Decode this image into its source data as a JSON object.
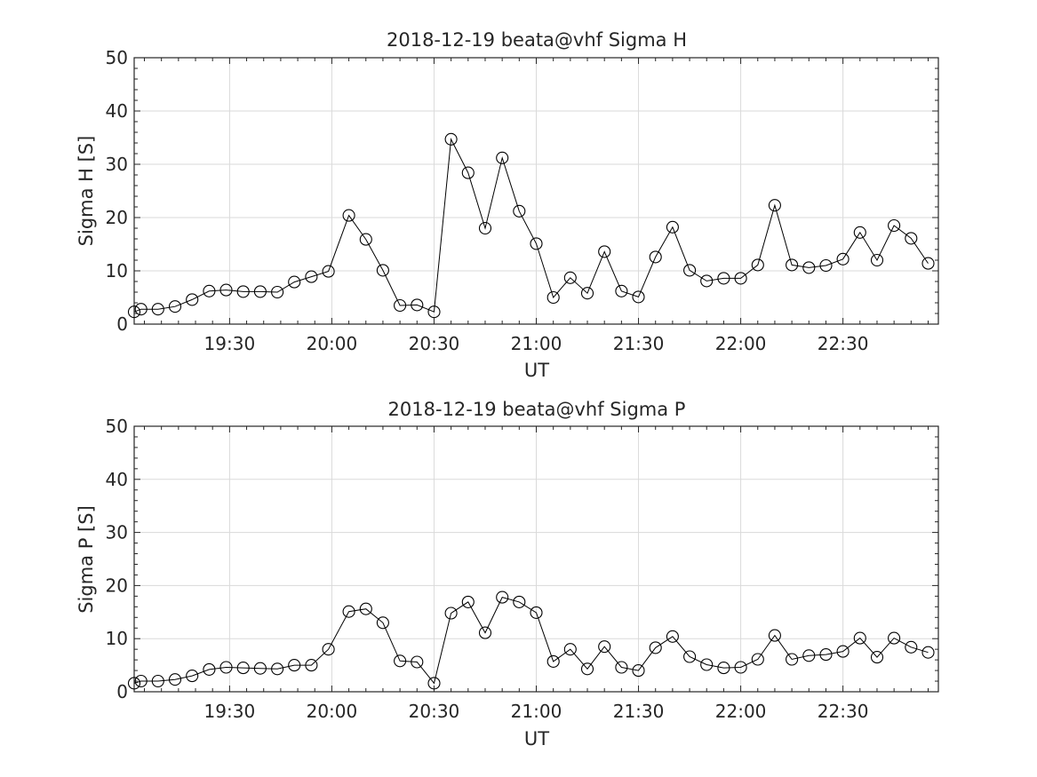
{
  "chart_data": [
    {
      "type": "line",
      "title": "2018-12-19  beata@vhf Sigma H",
      "xlabel": "UT",
      "ylabel": "Sigma H [S]",
      "xlim": [
        "19:02",
        "22:58"
      ],
      "ylim": [
        0,
        50
      ],
      "yticks": [
        0,
        10,
        20,
        30,
        40,
        50
      ],
      "xticks": [
        "19:30",
        "20:00",
        "20:30",
        "21:00",
        "21:30",
        "22:00",
        "22:30"
      ],
      "grid": true,
      "marker": "circle",
      "color": "#000000",
      "x": [
        "19:02",
        "19:04",
        "19:09",
        "19:14",
        "19:19",
        "19:24",
        "19:29",
        "19:34",
        "19:39",
        "19:44",
        "19:49",
        "19:54",
        "19:59",
        "20:05",
        "20:10",
        "20:15",
        "20:20",
        "20:25",
        "20:30",
        "20:35",
        "20:40",
        "20:45",
        "20:50",
        "20:55",
        "21:00",
        "21:05",
        "21:10",
        "21:15",
        "21:20",
        "21:25",
        "21:30",
        "21:35",
        "21:40",
        "21:45",
        "21:50",
        "21:55",
        "22:00",
        "22:05",
        "22:10",
        "22:15",
        "22:20",
        "22:25",
        "22:30",
        "22:35",
        "22:40",
        "22:45",
        "22:50",
        "22:55"
      ],
      "y": [
        2.3,
        2.8,
        2.8,
        3.3,
        4.6,
        6.2,
        6.4,
        6.1,
        6.1,
        6.0,
        7.9,
        8.9,
        9.9,
        20.4,
        15.9,
        10.1,
        3.5,
        3.6,
        2.3,
        34.7,
        28.4,
        18.0,
        31.2,
        21.2,
        15.1,
        5.0,
        8.7,
        5.8,
        13.6,
        6.2,
        5.1,
        12.6,
        18.2,
        10.1,
        8.1,
        8.6,
        8.6,
        11.1,
        22.3,
        11.1,
        10.6,
        11.0,
        12.2,
        17.2,
        12.0,
        18.5,
        16.1,
        11.4
      ]
    },
    {
      "type": "line",
      "title": "2018-12-19  beata@vhf Sigma P",
      "xlabel": "UT",
      "ylabel": "Sigma P [S]",
      "xlim": [
        "19:02",
        "22:58"
      ],
      "ylim": [
        0,
        50
      ],
      "yticks": [
        0,
        10,
        20,
        30,
        40,
        50
      ],
      "xticks": [
        "19:30",
        "20:00",
        "20:30",
        "21:00",
        "21:30",
        "22:00",
        "22:30"
      ],
      "grid": true,
      "marker": "circle",
      "color": "#000000",
      "x": [
        "19:02",
        "19:04",
        "19:09",
        "19:14",
        "19:19",
        "19:24",
        "19:29",
        "19:34",
        "19:39",
        "19:44",
        "19:49",
        "19:54",
        "19:59",
        "20:05",
        "20:10",
        "20:15",
        "20:20",
        "20:25",
        "20:30",
        "20:35",
        "20:40",
        "20:45",
        "20:50",
        "20:55",
        "21:00",
        "21:05",
        "21:10",
        "21:15",
        "21:20",
        "21:25",
        "21:30",
        "21:35",
        "21:40",
        "21:45",
        "21:50",
        "21:55",
        "22:00",
        "22:05",
        "22:10",
        "22:15",
        "22:20",
        "22:25",
        "22:30",
        "22:35",
        "22:40",
        "22:45",
        "22:50",
        "22:55"
      ],
      "y": [
        1.6,
        2.0,
        2.0,
        2.3,
        3.0,
        4.2,
        4.6,
        4.5,
        4.4,
        4.3,
        5.0,
        5.0,
        8.0,
        15.1,
        15.6,
        13.0,
        5.8,
        5.6,
        1.6,
        14.8,
        16.9,
        11.1,
        17.8,
        16.9,
        14.9,
        5.7,
        8.0,
        4.3,
        8.5,
        4.6,
        4.0,
        8.3,
        10.4,
        6.6,
        5.1,
        4.5,
        4.6,
        6.1,
        10.6,
        6.1,
        6.8,
        7.0,
        7.6,
        10.1,
        6.5,
        10.1,
        8.4,
        7.4
      ]
    }
  ]
}
